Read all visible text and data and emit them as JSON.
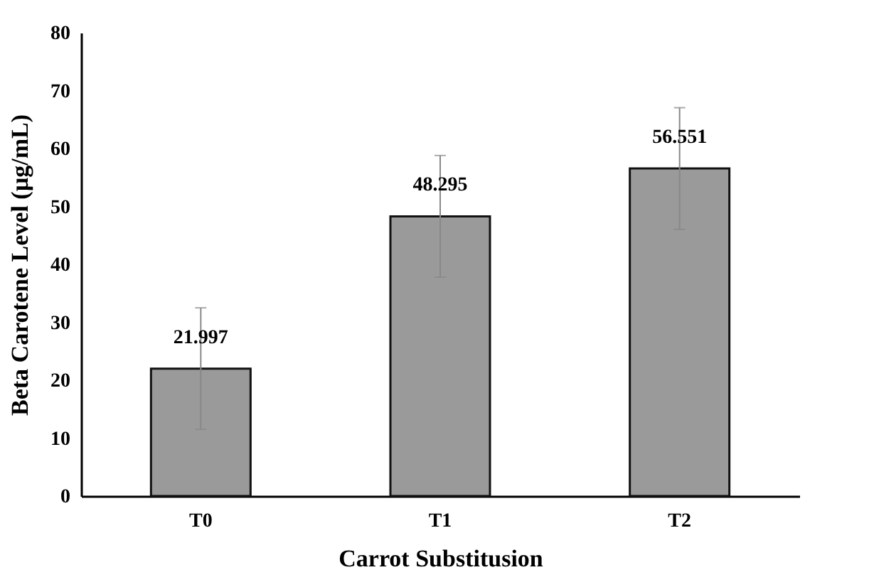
{
  "chart_data": {
    "type": "bar",
    "xlabel": "Carrot Substitusion",
    "ylabel": "Beta Carotene Level (µg/mL)",
    "categories": [
      "T0",
      "T1",
      "T2"
    ],
    "values": [
      21.997,
      48.295,
      56.551
    ],
    "errors": [
      10.5,
      10.5,
      10.5
    ],
    "color": "#9a9a9a",
    "data_labels": true,
    "ylim": [
      0,
      80
    ],
    "yticks": [
      0,
      10,
      20,
      30,
      40,
      50,
      60,
      70,
      80
    ],
    "grid": false
  }
}
